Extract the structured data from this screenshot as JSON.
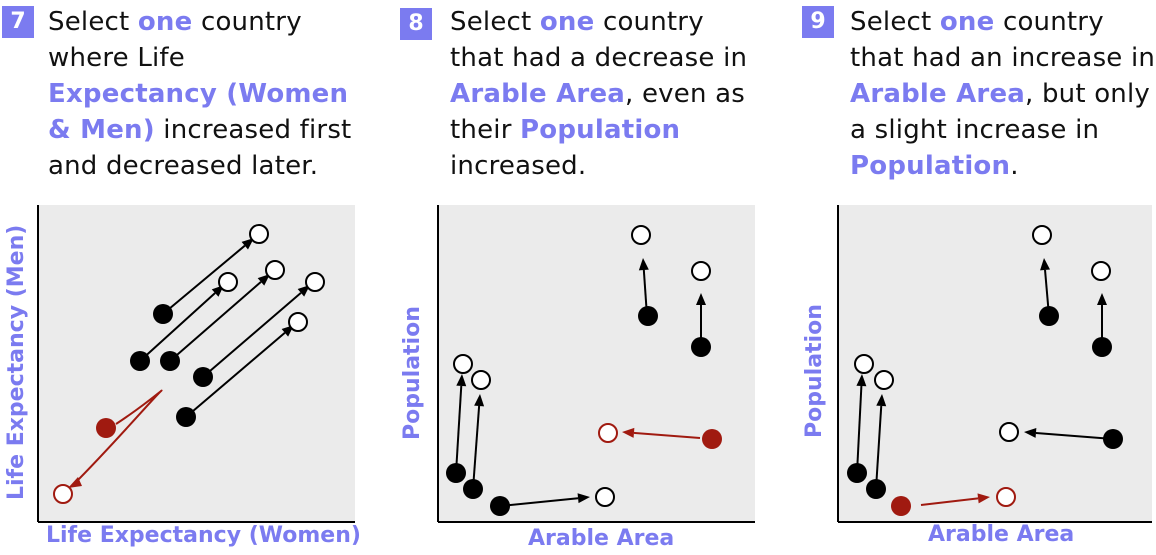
{
  "questions": [
    {
      "number": "7",
      "lines": [
        [
          {
            "t": "Select ",
            "h": false
          },
          {
            "t": "one",
            "h": true
          },
          {
            "t": " country",
            "h": false
          }
        ],
        [
          {
            "t": "where Life",
            "h": false
          }
        ],
        [
          {
            "t": "Expectancy (Women",
            "h": true
          }
        ],
        [
          {
            "t": "& Men)",
            "h": true
          },
          {
            "t": " increased first",
            "h": false
          }
        ],
        [
          {
            "t": "and decreased later.",
            "h": false
          }
        ]
      ],
      "xlabel": "Life Expectancy (Women)",
      "ylabel": "Life Expectancy (Men)"
    },
    {
      "number": "8",
      "lines": [
        [
          {
            "t": "Select ",
            "h": false
          },
          {
            "t": "one",
            "h": true
          },
          {
            "t": " country",
            "h": false
          }
        ],
        [
          {
            "t": "that had a decrease in",
            "h": false
          }
        ],
        [
          {
            "t": "Arable Area",
            "h": true
          },
          {
            "t": ", even as",
            "h": false
          }
        ],
        [
          {
            "t": "their ",
            "h": false
          },
          {
            "t": "Population",
            "h": true
          }
        ],
        [
          {
            "t": "increased.",
            "h": false
          }
        ]
      ],
      "xlabel": "Arable Area",
      "ylabel": "Population"
    },
    {
      "number": "9",
      "lines": [
        [
          {
            "t": "Select ",
            "h": false
          },
          {
            "t": "one",
            "h": true
          },
          {
            "t": " country",
            "h": false
          }
        ],
        [
          {
            "t": "that had an increase in",
            "h": false
          }
        ],
        [
          {
            "t": "Arable Area",
            "h": true
          },
          {
            "t": ", but only",
            "h": false
          }
        ],
        [
          {
            "t": "a slight increase in",
            "h": false
          }
        ],
        [
          {
            "t": "Population",
            "h": true
          },
          {
            "t": ".",
            "h": false
          }
        ]
      ],
      "xlabel": "Arable Area",
      "ylabel": "Population"
    }
  ],
  "colors": {
    "accent": "#7b7bf0",
    "highlight_red": "#a01a10",
    "dot": "#000000",
    "plot_bg": "#ebebeb"
  }
}
